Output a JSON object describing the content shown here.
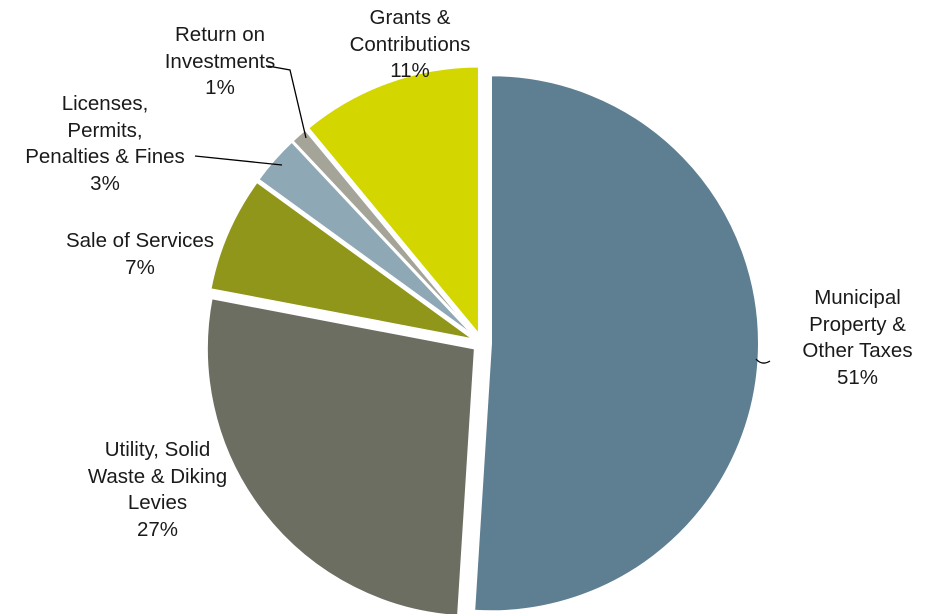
{
  "chart_data": {
    "type": "pie",
    "title": "",
    "slices": [
      {
        "label": [
          "Municipal",
          "Property &",
          "Other Taxes"
        ],
        "pct_label": "51%",
        "value": 51,
        "color": "#5e7f92"
      },
      {
        "label": [
          "Utility, Solid",
          "Waste & Diking",
          "Levies"
        ],
        "pct_label": "27%",
        "value": 27,
        "color": "#6d6e62"
      },
      {
        "label": [
          "Sale of Services"
        ],
        "pct_label": "7%",
        "value": 7,
        "color": "#8f961a"
      },
      {
        "label": [
          "Licenses,",
          "Permits,",
          "Penalties & Fines"
        ],
        "pct_label": "3%",
        "value": 3,
        "color": "#8fa8b6"
      },
      {
        "label": [
          "Return on",
          "Investments"
        ],
        "pct_label": "1%",
        "value": 1,
        "color": "#a5a498"
      },
      {
        "label": [
          "Grants &",
          "Contributions"
        ],
        "pct_label": "11%",
        "value": 11,
        "color": "#d4d600"
      }
    ]
  }
}
